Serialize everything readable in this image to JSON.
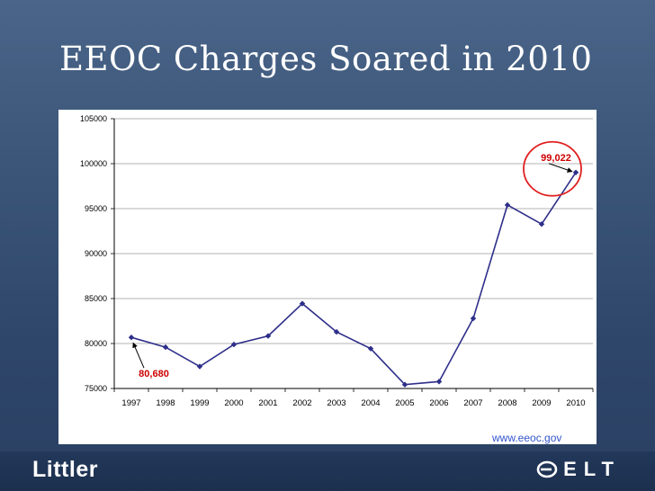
{
  "slide": {
    "title": "EEOC Charges Soared in 2010",
    "source": "www.eeoc.gov",
    "footer_left_logo": "Littler",
    "footer_right_logo": "ELT"
  },
  "chart_data": {
    "type": "line",
    "title": "",
    "xlabel": "",
    "ylabel": "",
    "categories": [
      "1997",
      "1998",
      "1999",
      "2000",
      "2001",
      "2002",
      "2003",
      "2004",
      "2005",
      "2006",
      "2007",
      "2008",
      "2009",
      "2010"
    ],
    "series": [
      {
        "values": [
          80680,
          79591,
          77444,
          79896,
          80840,
          84442,
          81293,
          79432,
          75428,
          75768,
          82792,
          95402,
          93277,
          99022
        ]
      }
    ],
    "ylim": [
      75000,
      105000
    ],
    "yticks": [
      75000,
      80000,
      85000,
      90000,
      95000,
      100000,
      105000
    ],
    "ytick_labels": [
      "75000",
      "80000",
      "85000",
      "90000",
      "95000",
      "100000",
      "105000"
    ],
    "grid": "horizontal",
    "line_color": "#2e2e8a",
    "marker_color": "#2e2e8a",
    "annotations": [
      {
        "text": "80,680",
        "category": "1997",
        "value": 80680
      },
      {
        "text": "99,022",
        "category": "2010",
        "value": 99022,
        "circled": true
      }
    ]
  }
}
